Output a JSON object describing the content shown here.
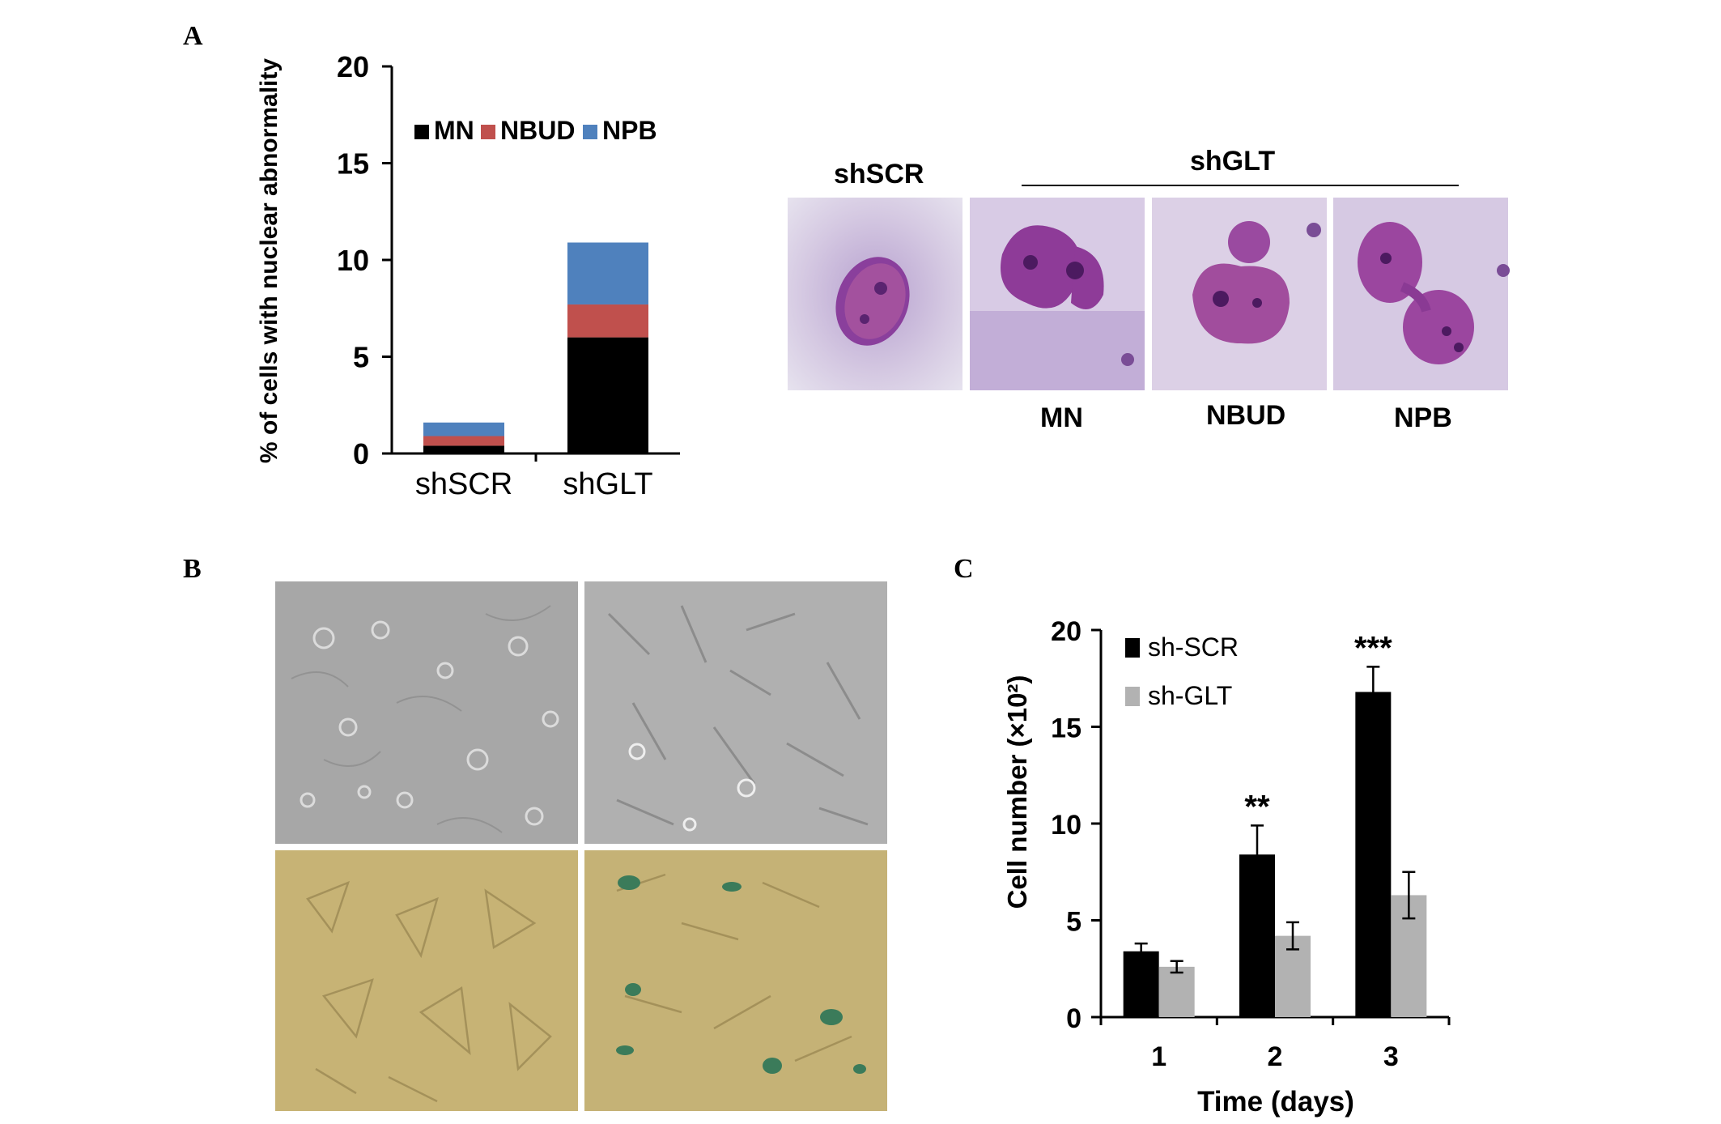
{
  "panels": {
    "a": "A",
    "b": "B",
    "c": "C"
  },
  "chart_data": [
    {
      "type": "bar",
      "stacked": true,
      "categories": [
        "shSCR",
        "shGLT"
      ],
      "series": [
        {
          "name": "MN",
          "color": "#000000",
          "values": [
            0.4,
            6.0
          ]
        },
        {
          "name": "NBUD",
          "color": "#c0504d",
          "values": [
            0.5,
            1.7
          ]
        },
        {
          "name": "NPB",
          "color": "#4f81bd",
          "values": [
            0.7,
            3.2
          ]
        }
      ],
      "ylabel": "% of cells with nuclear abnormality",
      "ylim": [
        0,
        20
      ],
      "yticks": [
        0,
        5,
        10,
        15,
        20
      ],
      "grid": false,
      "legend": "top"
    },
    {
      "type": "bar",
      "categories": [
        "1",
        "2",
        "3"
      ],
      "series": [
        {
          "name": "sh-SCR",
          "color": "#000000",
          "values": [
            3.4,
            8.4,
            16.8
          ],
          "errors": [
            0.4,
            1.5,
            1.3
          ]
        },
        {
          "name": "sh-GLT",
          "color": "#b2b2b2",
          "values": [
            2.6,
            4.2,
            6.3
          ],
          "errors": [
            0.3,
            0.7,
            1.2
          ]
        }
      ],
      "annotations": [
        "",
        "**",
        "***"
      ],
      "xlabel": "Time (days)",
      "ylabel": "Cell number (×10²)",
      "ylim": [
        0,
        20
      ],
      "yticks": [
        0,
        5,
        10,
        15,
        20
      ],
      "grid": false,
      "legend": "top-left"
    }
  ],
  "micrographs": {
    "group_label": "shGLT",
    "control_label": "shSCR",
    "captions": [
      "MN",
      "NBUD",
      "NPB"
    ]
  }
}
